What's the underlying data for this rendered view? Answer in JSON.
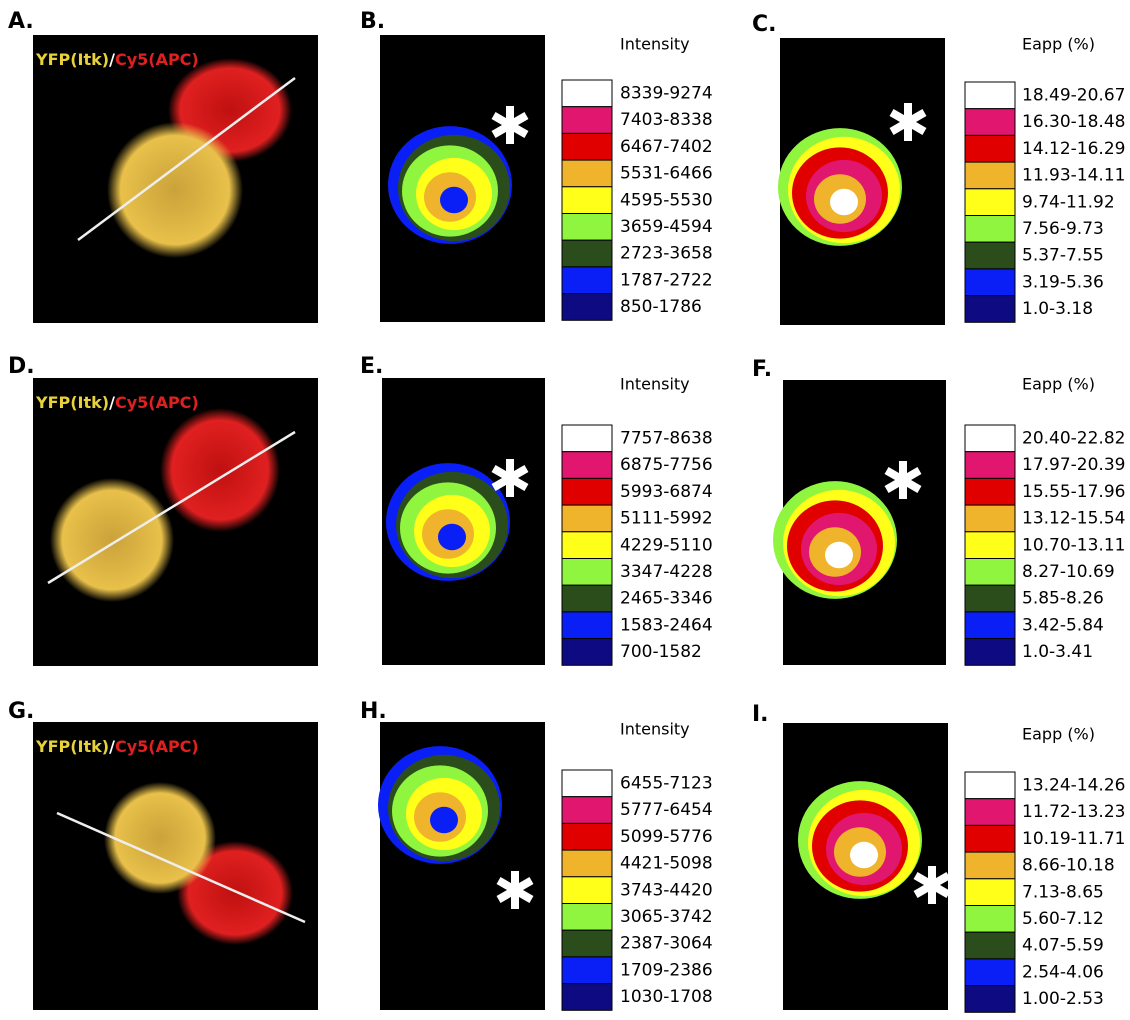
{
  "panels": [
    {
      "label": "A.",
      "overlay": [
        "YFP(Itk)",
        "/",
        "Cy5(APC)"
      ]
    },
    {
      "label": "B.",
      "legend_title": "Intensity",
      "ranges": [
        "8339-9274",
        "7403-8338",
        "6467-7402",
        "5531-6466",
        "4595-5530",
        "3659-4594",
        "2723-3658",
        "1787-2722",
        "850-1786"
      ]
    },
    {
      "label": "C.",
      "legend_title": "Eapp (%)",
      "ranges": [
        "18.49-20.67",
        "16.30-18.48",
        "14.12-16.29",
        "11.93-14.11",
        "9.74-11.92",
        "7.56-9.73",
        "5.37-7.55",
        "3.19-5.36",
        "1.0-3.18"
      ]
    },
    {
      "label": "D.",
      "overlay": [
        "YFP(Itk)",
        "/",
        "Cy5(APC)"
      ]
    },
    {
      "label": "E.",
      "legend_title": "Intensity",
      "ranges": [
        "7757-8638",
        "6875-7756",
        "5993-6874",
        "5111-5992",
        "4229-5110",
        "3347-4228",
        "2465-3346",
        "1583-2464",
        "700-1582"
      ]
    },
    {
      "label": "F.",
      "legend_title": "Eapp (%)",
      "ranges": [
        "20.40-22.82",
        "17.97-20.39",
        "15.55-17.96",
        "13.12-15.54",
        "10.70-13.11",
        "8.27-10.69",
        "5.85-8.26",
        "3.42-5.84",
        "1.0-3.41"
      ]
    },
    {
      "label": "G.",
      "overlay": [
        "YFP(Itk)",
        "/",
        "Cy5(APC)"
      ]
    },
    {
      "label": "H.",
      "legend_title": "Intensity",
      "ranges": [
        "6455-7123",
        "5777-6454",
        "5099-5776",
        "4421-5098",
        "3743-4420",
        "3065-3742",
        "2387-3064",
        "1709-2386",
        "1030-1708"
      ]
    },
    {
      "label": "I.",
      "legend_title": "Eapp (%)",
      "ranges": [
        "13.24-14.26",
        "11.72-13.23",
        "10.19-11.71",
        "8.66-10.18",
        "7.13-8.65",
        "5.60-7.12",
        "4.07-5.59",
        "2.54-4.06",
        "1.00-2.53"
      ]
    }
  ],
  "swatch_colors": [
    "#ffffff",
    "#e0166f",
    "#e00000",
    "#efb32c",
    "#ffff1a",
    "#8ff53f",
    "#2b4d1c",
    "#0a1ff5",
    "#0e0b82"
  ]
}
